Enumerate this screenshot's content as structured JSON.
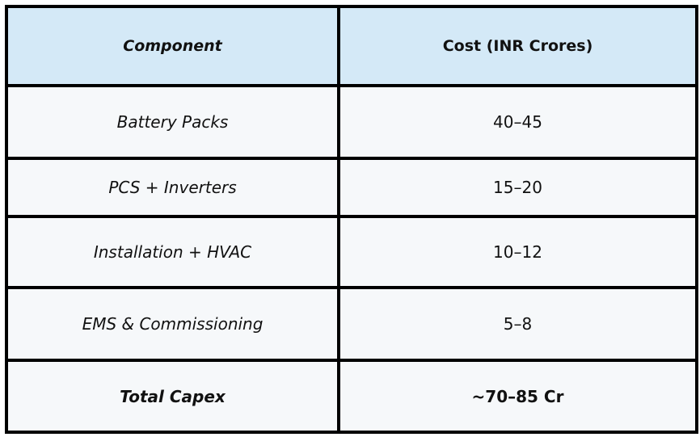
{
  "table": {
    "headers": [
      "Component",
      "Cost (INR Crores)"
    ],
    "rows": [
      {
        "component": "Battery Packs",
        "cost": "40–45"
      },
      {
        "component": "PCS + Inverters",
        "cost": "15–20"
      },
      {
        "component": "Installation + HVAC",
        "cost": "10–12"
      },
      {
        "component": "EMS & Commissioning",
        "cost": "5–8"
      },
      {
        "component": "Total Capex",
        "cost": "~70–85 Cr"
      }
    ]
  },
  "colors": {
    "header_bg": "#d4e9f7",
    "cell_bg": "#f6f8fa",
    "border": "#000000"
  }
}
